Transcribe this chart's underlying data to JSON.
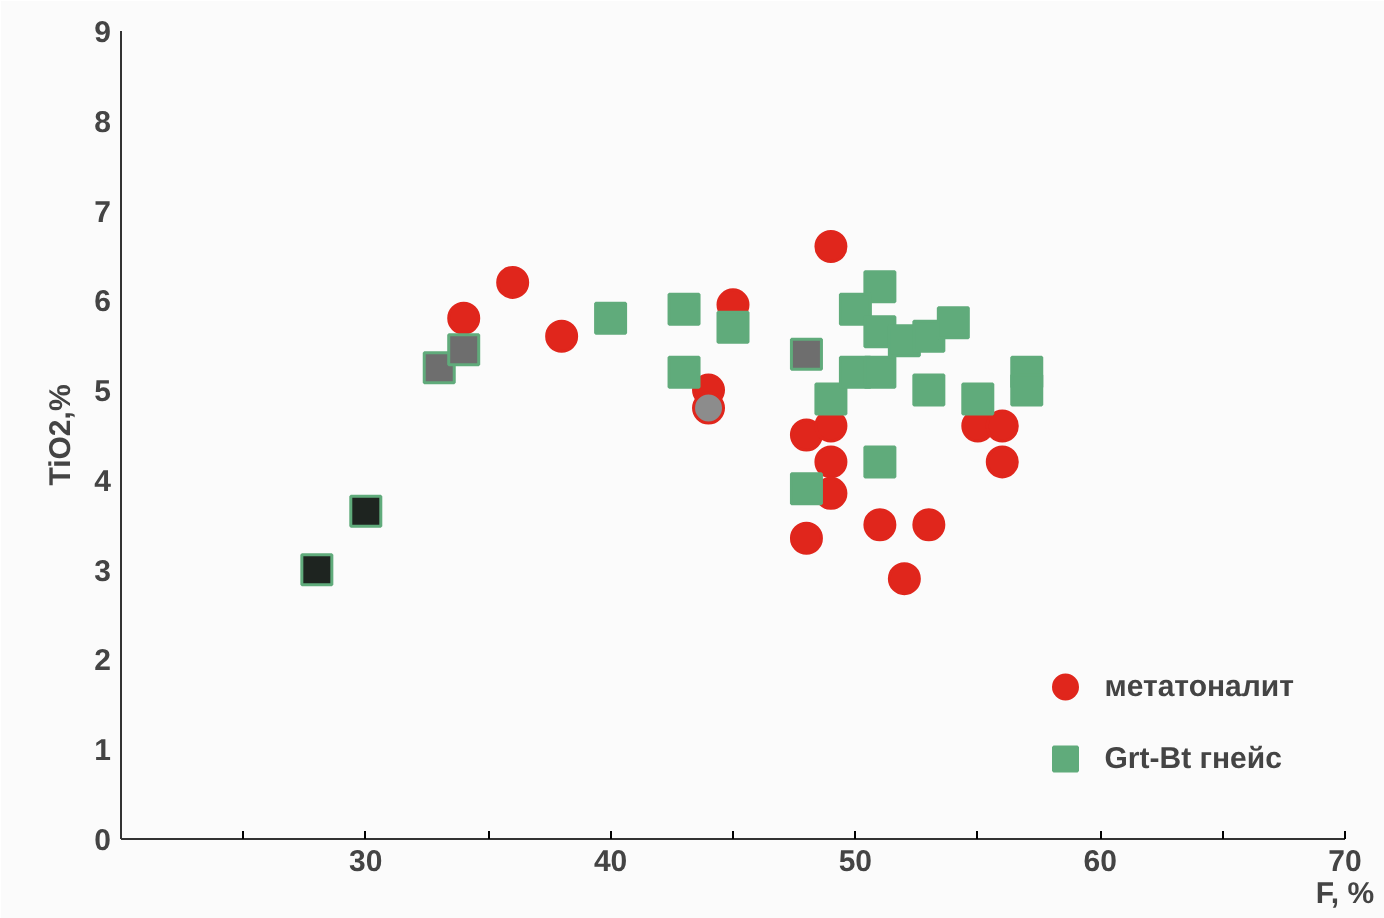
{
  "chart_data": {
    "type": "scatter",
    "xlabel": "F, %",
    "ylabel": "TiO2,%",
    "xlim": [
      20,
      70
    ],
    "xticks": [
      {
        "value": 25,
        "label": null
      },
      30,
      {
        "value": 35,
        "label": null
      },
      40,
      {
        "value": 45,
        "label": null
      },
      50,
      {
        "value": 55,
        "label": null
      },
      60,
      {
        "value": 65,
        "label": null
      },
      70
    ],
    "ylim": [
      0,
      9
    ],
    "yticks": [
      0,
      1,
      2,
      3,
      4,
      5,
      6,
      7,
      8,
      9
    ],
    "grid": false,
    "legend": "bottom right",
    "series": [
      {
        "name": "метатоналит",
        "marker": "circle",
        "color": "#e0261c",
        "x": [
          34,
          36,
          38,
          45,
          44,
          44,
          49,
          48,
          49,
          49,
          49,
          48,
          51,
          53,
          52,
          55,
          56,
          56
        ],
        "values": [
          5.8,
          6.2,
          5.6,
          5.95,
          5.0,
          4.8,
          6.6,
          4.5,
          4.6,
          4.2,
          3.85,
          3.35,
          3.5,
          3.5,
          2.9,
          4.6,
          4.6,
          4.2
        ],
        "colors": [
          "#e0261c",
          "#e0261c",
          "#e0261c",
          "#e0261c",
          "#e0261c",
          "#8c8c8c",
          "#e0261c",
          "#e0261c",
          "#e0261c",
          "#e0261c",
          "#e0261c",
          "#e0261c",
          "#e0261c",
          "#e0261c",
          "#e0261c",
          "#e0261c",
          "#e0261c",
          "#e0261c"
        ]
      },
      {
        "name": "Grt-Bt гнейс",
        "marker": "square",
        "color": "#60ab7b",
        "x": [
          33,
          34,
          28,
          30,
          40,
          43,
          43,
          45,
          48,
          51,
          50,
          51,
          49,
          50,
          51,
          52,
          53,
          54,
          53,
          55,
          57,
          57,
          48,
          51
        ],
        "values": [
          5.25,
          5.45,
          3.0,
          3.65,
          5.8,
          5.9,
          5.2,
          5.7,
          5.4,
          6.15,
          5.9,
          5.65,
          4.9,
          5.2,
          5.2,
          5.55,
          5.6,
          5.75,
          5.0,
          4.9,
          5.2,
          5.0,
          3.9,
          4.2
        ],
        "colors": [
          "#6e6e6e",
          "#6e6e6e",
          "#1e2420",
          "#1e2420",
          "#60ab7b",
          "#60ab7b",
          "#60ab7b",
          "#60ab7b",
          "#6e6e6e",
          "#60ab7b",
          "#60ab7b",
          "#60ab7b",
          "#60ab7b",
          "#60ab7b",
          "#60ab7b",
          "#60ab7b",
          "#60ab7b",
          "#60ab7b",
          "#60ab7b",
          "#60ab7b",
          "#60ab7b",
          "#60ab7b",
          "#60ab7b",
          "#60ab7b"
        ]
      }
    ]
  }
}
